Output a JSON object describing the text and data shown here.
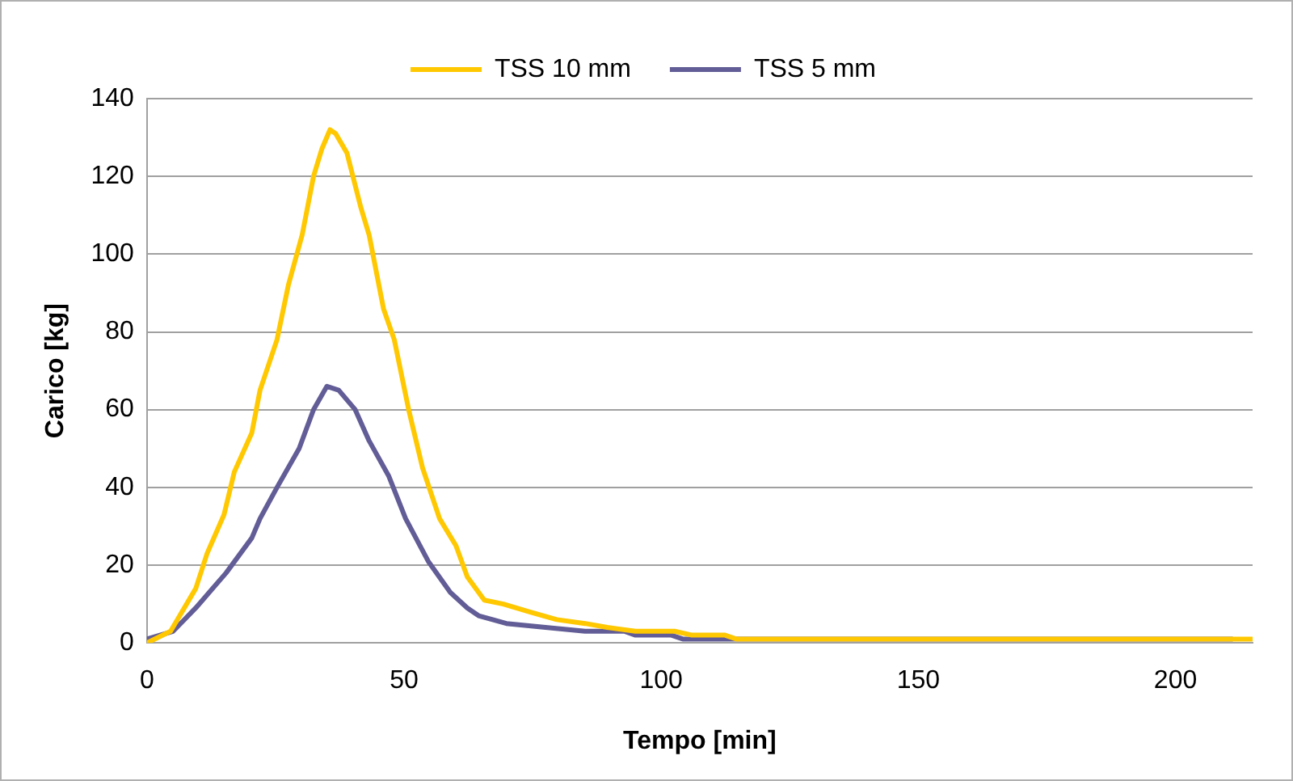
{
  "chart_data": {
    "type": "line",
    "xlabel": "Tempo [min]",
    "ylabel": "Carico [kg]",
    "xlim": [
      0,
      215
    ],
    "xticks": [
      0,
      50,
      100,
      150,
      200
    ],
    "ylim": [
      0,
      140
    ],
    "yticks": [
      0,
      20,
      40,
      60,
      80,
      100,
      120,
      140
    ],
    "grid": "y",
    "legend": "top",
    "marker": "none",
    "line_style": "solid",
    "series": [
      {
        "name": "TSS 10 mm",
        "color": "#ffc800",
        "x": [
          0,
          4.6,
          9.5,
          11.7,
          15,
          17,
          20.4,
          22,
          25.3,
          27.5,
          30.2,
          32.4,
          34,
          35.6,
          36.7,
          38.9,
          41.6,
          43.2,
          46,
          48.1,
          50.9,
          53.6,
          56.9,
          60.1,
          62.3,
          65.6,
          69.3,
          74.3,
          79.7,
          85.2,
          89.5,
          95,
          102.6,
          106,
          112.4,
          114.6,
          150,
          215
        ],
        "values": [
          0,
          3,
          14,
          23,
          33,
          44,
          54,
          65,
          78,
          92,
          105,
          120,
          127,
          132,
          131,
          126,
          112,
          105,
          86,
          78,
          60,
          45,
          32,
          25,
          17,
          11,
          10,
          8,
          6,
          5,
          4,
          3,
          3,
          2,
          2,
          1,
          1,
          1
        ]
      },
      {
        "name": "TSS 5 mm",
        "color": "#625d96",
        "x": [
          0,
          5.1,
          9.5,
          15.4,
          20.4,
          22,
          25.3,
          29.6,
          32.4,
          35,
          37.3,
          40.5,
          43.2,
          47,
          50.3,
          54.7,
          59,
          62.3,
          64.5,
          69.9,
          77.5,
          85.2,
          92.8,
          95,
          102,
          104.2,
          150,
          211
        ],
        "values": [
          1,
          3,
          9,
          18,
          27,
          32,
          40,
          50,
          60,
          66,
          65,
          60,
          52,
          43,
          32,
          21,
          13,
          9,
          7,
          5,
          4,
          3,
          3,
          2,
          2,
          1,
          1,
          1
        ]
      }
    ]
  }
}
